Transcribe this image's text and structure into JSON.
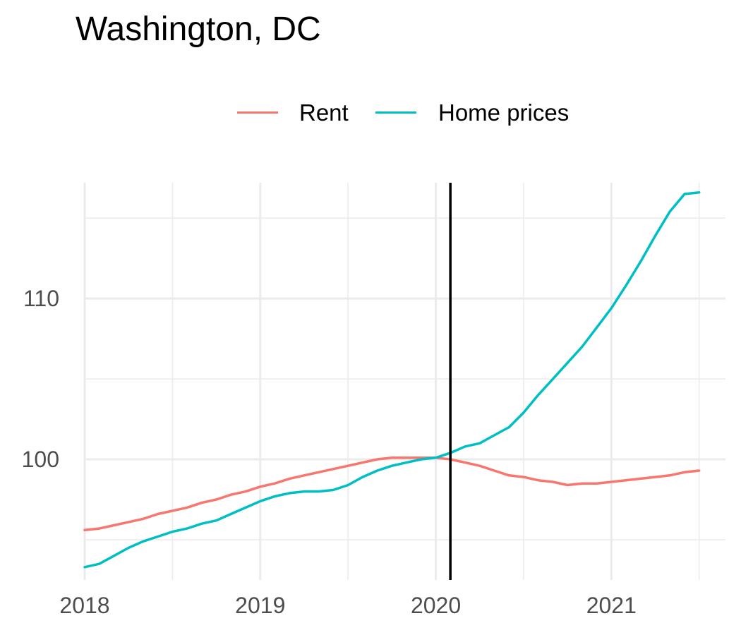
{
  "colors": {
    "rent": "#f8766d",
    "home_prices": "#00bfc4",
    "grid": "#ebebeb",
    "reference_line": "#000000"
  },
  "chart_data": {
    "type": "line",
    "title": "Washington, DC",
    "xlabel": "",
    "ylabel": "",
    "legend_position": "top",
    "grid": true,
    "xlim": [
      2018.0,
      2021.65
    ],
    "ylim": [
      92.5,
      117.2
    ],
    "x_ticks": [
      {
        "value": 2018,
        "label": "2018"
      },
      {
        "value": 2019,
        "label": "2019"
      },
      {
        "value": 2020,
        "label": "2020"
      },
      {
        "value": 2021,
        "label": "2021"
      }
    ],
    "y_ticks": [
      {
        "value": 100,
        "label": "100"
      },
      {
        "value": 110,
        "label": "110"
      }
    ],
    "x_minor_ticks": [
      2018.5,
      2019.5,
      2020.5,
      2021.5
    ],
    "y_minor_ticks": [
      95,
      105,
      115
    ],
    "reference_line": {
      "x": 2020.083
    },
    "series": [
      {
        "name": "Rent",
        "color_key": "rent",
        "x": [
          2018.0,
          2018.083,
          2018.167,
          2018.25,
          2018.333,
          2018.417,
          2018.5,
          2018.583,
          2018.667,
          2018.75,
          2018.833,
          2018.917,
          2019.0,
          2019.083,
          2019.167,
          2019.25,
          2019.333,
          2019.417,
          2019.5,
          2019.583,
          2019.667,
          2019.75,
          2019.833,
          2019.917,
          2020.0,
          2020.083,
          2020.167,
          2020.25,
          2020.333,
          2020.417,
          2020.5,
          2020.583,
          2020.667,
          2020.75,
          2020.833,
          2020.917,
          2021.0,
          2021.083,
          2021.167,
          2021.25,
          2021.333,
          2021.417,
          2021.5
        ],
        "values": [
          95.6,
          95.7,
          95.9,
          96.1,
          96.3,
          96.6,
          96.8,
          97.0,
          97.3,
          97.5,
          97.8,
          98.0,
          98.3,
          98.5,
          98.8,
          99.0,
          99.2,
          99.4,
          99.6,
          99.8,
          100.0,
          100.1,
          100.1,
          100.1,
          100.1,
          100.0,
          99.8,
          99.6,
          99.3,
          99.0,
          98.9,
          98.7,
          98.6,
          98.4,
          98.5,
          98.5,
          98.6,
          98.7,
          98.8,
          98.9,
          99.0,
          99.2,
          99.3
        ]
      },
      {
        "name": "Home prices",
        "color_key": "home_prices",
        "x": [
          2018.0,
          2018.083,
          2018.167,
          2018.25,
          2018.333,
          2018.417,
          2018.5,
          2018.583,
          2018.667,
          2018.75,
          2018.833,
          2018.917,
          2019.0,
          2019.083,
          2019.167,
          2019.25,
          2019.333,
          2019.417,
          2019.5,
          2019.583,
          2019.667,
          2019.75,
          2019.833,
          2019.917,
          2020.0,
          2020.083,
          2020.167,
          2020.25,
          2020.333,
          2020.417,
          2020.5,
          2020.583,
          2020.667,
          2020.75,
          2020.833,
          2020.917,
          2021.0,
          2021.083,
          2021.167,
          2021.25,
          2021.333,
          2021.417,
          2021.5
        ],
        "values": [
          93.3,
          93.5,
          94.0,
          94.5,
          94.9,
          95.2,
          95.5,
          95.7,
          96.0,
          96.2,
          96.6,
          97.0,
          97.4,
          97.7,
          97.9,
          98.0,
          98.0,
          98.1,
          98.4,
          98.9,
          99.3,
          99.6,
          99.8,
          100.0,
          100.1,
          100.4,
          100.8,
          101.0,
          101.5,
          102.0,
          102.9,
          104.0,
          105.0,
          106.0,
          107.0,
          108.2,
          109.4,
          110.8,
          112.3,
          113.9,
          115.4,
          116.5,
          116.6
        ]
      }
    ]
  }
}
